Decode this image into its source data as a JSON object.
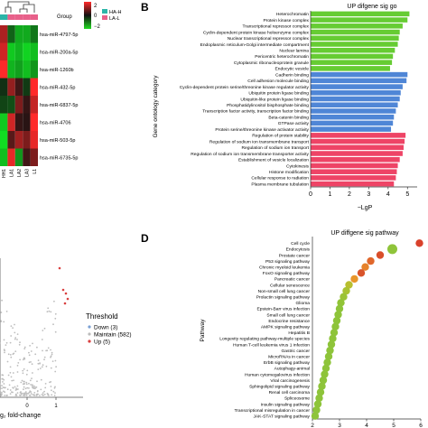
{
  "panel_labels": {
    "b": "B",
    "d": "D"
  },
  "heatmap": {
    "group_label": "Group",
    "legend_groups": [
      {
        "label": "HA-H",
        "color": "#2bb5a8"
      },
      {
        "label": "LA-L",
        "color": "#e8608a"
      }
    ],
    "scale_ticks": [
      "2",
      "0",
      "−2"
    ],
    "rows": [
      "hsa-miR-4797-5p",
      "hsa-miR-200a-5p",
      "hsa-miR-1260b",
      "hsa-miR-432-5p",
      "hsa-miR-6837-5p",
      "hsa-miR-4706",
      "hsa-miR-503-5p",
      "hsa-miR-6735-5p"
    ],
    "cols": [
      "HH1",
      "LA1",
      "LA2",
      "LA3",
      "L1"
    ],
    "col_groups": [
      "HA-H",
      "LA-L",
      "LA-L",
      "LA-L",
      "LA-L"
    ],
    "values": [
      [
        1.3,
        -0.8,
        -1.5,
        -1.5,
        -1.0
      ],
      [
        1.6,
        -1.8,
        -1.6,
        -1.9,
        -1.7
      ],
      [
        2.0,
        -1.6,
        -1.4,
        -1.7,
        -1.3
      ],
      [
        -0.3,
        1.1,
        0.4,
        -0.4,
        2.0
      ],
      [
        -0.5,
        -0.6,
        0.9,
        0.3,
        1.5
      ],
      [
        -1.8,
        1.6,
        0.3,
        0.2,
        2.0
      ],
      [
        -2.0,
        0.6,
        1.2,
        0.9,
        1.8
      ],
      [
        -1.7,
        1.8,
        -1.3,
        0.4,
        0.9
      ]
    ]
  },
  "volcano": {
    "xlabel_fragment": "g₂ fold-change",
    "x_ticks": [
      "0",
      "1"
    ],
    "legend_title": "Threshold",
    "legend_items": [
      {
        "label": "Down (3)",
        "color": "#7aa0d4"
      },
      {
        "label": "Maintain (582)",
        "color": "#bbbbbb"
      },
      {
        "label": "Up (5)",
        "color": "#d94040"
      }
    ]
  },
  "chart_data": [
    {
      "type": "bar",
      "title": "UP difgene sig go",
      "xlabel": "−LgP",
      "ylabel": "Gene ontology category",
      "xlim": [
        0,
        5.5
      ],
      "x_ticks": [
        "0",
        "1",
        "2",
        "3",
        "4",
        "5"
      ],
      "colors": {
        "CC": "#66cc33",
        "MF": "#4f86d6",
        "BP": "#ee4466"
      },
      "categories": [
        "Heterochromatin",
        "Protein kinase complex",
        "Transcriptional repressor complex",
        "Cyclin-dependent protein kinase holoenzyme complex",
        "Nuclear transcriptional repressor complex",
        "Endoplasmic reticulum-Golgi intermediate compartment",
        "Nuclear lamina",
        "Pericentric heterochromatin",
        "Cytoplasmic ribonucleoprotein granule",
        "Endocytic vesicle",
        "Cadherin binding",
        "Cell adhesion molecule binding",
        "Cyclin-dependent protein serine/threonine kinase regulator activity",
        "Ubiquitin protein ligase binding",
        "Ubiquitin-like protein ligase binding",
        "Phosphatidylinositol bisphosphate binding",
        "Transcription factor activity, transcription factor binding",
        "Beta-catenin binding",
        "GTPase activity",
        "Protein serine/threonine kinase activator activity",
        "Regulation of protein stability",
        "Regulation of sodium ion transmembrane transport",
        "Regulation of sodium ion transport",
        "Regulation of sodium ion transmembrane transporter activity",
        "Establishment of vesicle localization",
        "Cytokinesis",
        "Histone modification",
        "Cellular response to radiation",
        "Plasma membrane tubulation"
      ],
      "groups": [
        "CC",
        "CC",
        "CC",
        "CC",
        "CC",
        "CC",
        "CC",
        "CC",
        "CC",
        "CC",
        "MF",
        "MF",
        "MF",
        "MF",
        "MF",
        "MF",
        "MF",
        "MF",
        "MF",
        "MF",
        "BP",
        "BP",
        "BP",
        "BP",
        "BP",
        "BP",
        "BP",
        "BP",
        "BP"
      ],
      "values": [
        5.1,
        5.0,
        4.75,
        4.6,
        4.55,
        4.5,
        4.35,
        4.25,
        4.2,
        4.1,
        5.0,
        4.95,
        4.75,
        4.65,
        4.6,
        4.5,
        4.4,
        4.3,
        4.25,
        4.15,
        4.9,
        4.85,
        4.8,
        4.75,
        4.6,
        4.5,
        4.45,
        4.4,
        4.3
      ]
    },
    {
      "type": "scatter",
      "title": "UP diffgene sig pathway",
      "ylabel": "Pathway",
      "xlim": [
        2,
        6
      ],
      "x_ticks": [
        "2",
        "3",
        "4",
        "5",
        "6"
      ],
      "categories": [
        "Cell cycle",
        "Endocytosis",
        "Prostate cancer",
        "P53 signaling pathway",
        "Chronic myeloid leukemia",
        "FoxO signaling pathway",
        "Pancreatic cancer",
        "Cellular senescence",
        "Non-small cell lung cancer",
        "Prolactin signaling pathway",
        "Glioma",
        "Epstein-Barr virus infection",
        "Small cell lung cancer",
        "Endocrine resistance",
        "AMPK signaling pathway",
        "Hepatitis B",
        "Longevity regulating pathway-multiple species",
        "Human T-cell leukemia virus 1 infection",
        "Gastric cancer",
        "MicroRNAs in cancer",
        "ErbB signaling pathway",
        "Autophagy-animal",
        "Human cytomegalovirus infection",
        "Viral carcinogenesis",
        "Sphingolipid signaling pathway",
        "Renal cell carcinoma",
        "Spliceosome",
        "Insulin signaling pathway",
        "Transcriptional misregulation in cancer",
        "JAK-STAT signaling pathway"
      ],
      "x": [
        5.95,
        4.95,
        4.5,
        4.15,
        3.95,
        3.8,
        3.55,
        3.35,
        3.25,
        3.15,
        3.05,
        3.0,
        2.95,
        2.9,
        2.85,
        2.8,
        2.75,
        2.7,
        2.65,
        2.6,
        2.55,
        2.5,
        2.45,
        2.4,
        2.35,
        2.3,
        2.25,
        2.2,
        2.15,
        2.1
      ],
      "colors": [
        "#d9412b",
        "#8fc43a",
        "#d94f2b",
        "#e0672b",
        "#e6822b",
        "#d9542b",
        "#e8962b",
        "#b8bf2f",
        "#a9c232",
        "#9bc335",
        "#91c436",
        "#8ec43a",
        "#8ec43a",
        "#8ec43a",
        "#8ec43a",
        "#8ec43a",
        "#8ec43a",
        "#8ec43a",
        "#8ec43a",
        "#8ec43a",
        "#8ec43a",
        "#8ec43a",
        "#8ec43a",
        "#8ec43a",
        "#8ec43a",
        "#8ec43a",
        "#8ec43a",
        "#8ec43a",
        "#8ec43a",
        "#8ec43a"
      ],
      "sizes": [
        2,
        3,
        2,
        2,
        2,
        2,
        2,
        2,
        2,
        2,
        2,
        2,
        2,
        2,
        2,
        2,
        2,
        2,
        2,
        2,
        2,
        2,
        2,
        2,
        2,
        2,
        2,
        2,
        2,
        2
      ]
    }
  ]
}
